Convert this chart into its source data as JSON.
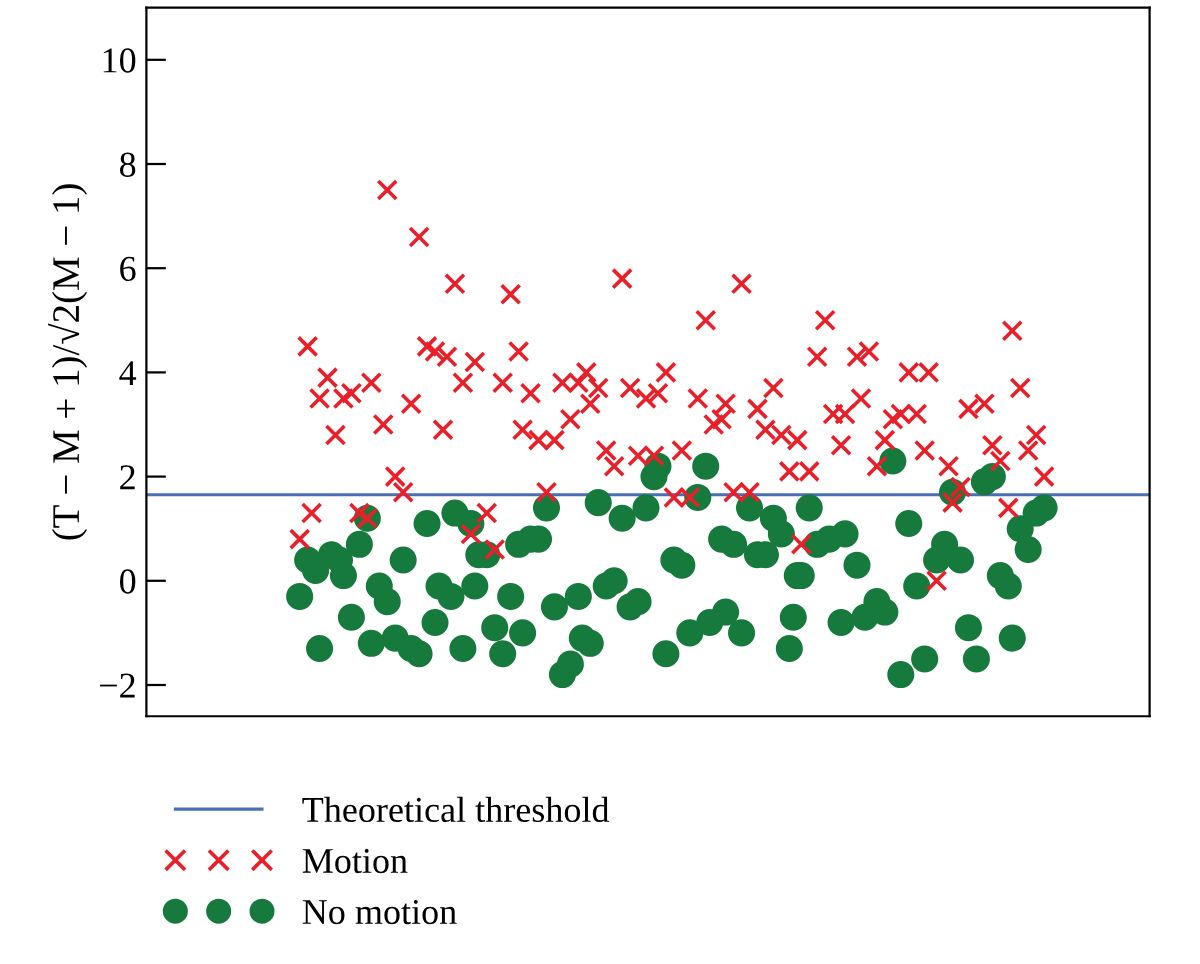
{
  "chart_data": {
    "type": "scatter",
    "ylabel": "(T − M + 1)/√2(M − 1)",
    "categories": [
      null,
      null,
      null,
      null,
      null,
      null,
      null,
      null,
      null,
      null,
      null,
      null,
      null,
      null,
      null,
      null,
      null,
      null,
      null,
      null,
      null,
      null,
      null,
      null,
      null,
      null,
      null,
      null,
      null,
      null,
      null,
      null,
      null,
      null,
      null,
      null,
      null,
      null,
      null,
      null,
      null,
      null,
      null,
      null,
      null,
      null,
      null,
      null,
      null,
      null,
      null,
      null,
      null,
      null,
      null,
      null,
      null,
      null,
      null,
      null,
      null,
      null,
      null,
      null,
      null,
      null,
      null,
      null,
      null,
      null,
      null,
      null,
      null,
      null,
      null,
      null,
      null,
      null,
      null,
      null,
      null,
      null,
      null,
      null,
      null,
      null,
      null,
      null,
      null,
      null,
      null,
      null,
      null,
      null,
      null,
      null,
      null,
      null,
      null,
      null,
      null,
      null,
      null,
      null,
      null,
      null,
      null,
      null,
      null,
      null,
      null,
      null,
      null,
      null,
      null,
      null,
      null,
      null,
      null,
      null,
      null,
      null,
      null,
      null,
      null,
      null,
      null,
      null,
      null,
      null,
      null,
      null,
      null,
      null,
      null,
      null,
      null,
      null,
      null,
      null,
      null,
      null,
      null,
      null,
      null,
      null,
      null,
      null,
      null,
      null,
      null,
      null,
      null,
      null,
      null,
      null,
      null,
      null,
      null,
      null,
      null,
      null,
      null,
      null,
      null,
      null,
      null,
      null,
      null,
      null,
      null,
      null,
      null,
      null,
      null,
      null,
      null,
      null,
      null,
      null,
      null,
      null,
      null,
      null,
      null,
      null,
      null,
      null,
      null,
      null,
      null,
      null,
      null,
      null,
      null,
      null,
      null,
      null,
      null,
      null,
      null,
      null,
      null,
      null,
      null,
      null,
      null,
      null,
      null,
      null,
      null,
      null,
      null,
      null,
      null,
      null,
      null,
      null,
      null,
      null,
      null,
      null,
      null,
      null,
      null,
      null,
      null,
      null,
      null,
      null,
      null,
      null,
      null,
      null,
      null,
      null,
      null,
      null,
      null,
      null,
      null,
      null,
      null,
      null,
      null,
      null,
      null,
      null,
      null,
      null,
      null,
      null
    ],
    "series": [
      {
        "name": "Motion",
        "color": "#e8202a",
        "marker": "cross",
        "values": [
          null,
          null,
          null,
          null,
          null,
          null,
          null,
          null,
          null,
          null,
          null,
          null,
          null,
          null,
          null,
          null,
          null,
          null,
          null,
          null,
          null,
          null,
          null,
          null,
          null,
          null,
          null,
          null,
          null,
          null,
          null,
          null,
          null,
          null,
          null,
          null,
          null,
          null,
          0.8,
          null,
          4.5,
          1.3,
          null,
          3.5,
          null,
          3.9,
          null,
          2.8,
          null,
          3.5,
          null,
          3.6,
          null,
          1.3,
          null,
          1.2,
          3.8,
          null,
          null,
          3.0,
          7.5,
          null,
          2.0,
          null,
          1.7,
          null,
          3.4,
          null,
          6.6,
          null,
          4.5,
          null,
          4.4,
          null,
          2.9,
          4.3,
          null,
          5.7,
          null,
          3.8,
          null,
          0.9,
          4.2,
          null,
          null,
          1.3,
          null,
          0.6,
          null,
          3.8,
          null,
          5.5,
          null,
          4.4,
          2.9,
          null,
          3.6,
          null,
          2.7,
          null,
          1.7,
          null,
          2.7,
          null,
          3.8,
          null,
          3.1,
          null,
          3.8,
          null,
          4.0,
          3.4,
          null,
          3.7,
          null,
          2.5,
          null,
          2.2,
          null,
          5.8,
          null,
          3.7,
          null,
          2.4,
          null,
          3.5,
          null,
          2.4,
          3.6,
          null,
          4.0,
          null,
          1.6,
          null,
          2.5,
          null,
          1.6,
          null,
          3.5,
          null,
          5.0,
          null,
          3.0,
          null,
          3.1,
          3.4,
          null,
          1.7,
          null,
          5.7,
          null,
          1.7,
          null,
          3.3,
          null,
          2.9,
          null,
          3.7,
          null,
          2.8,
          null,
          2.1,
          null,
          2.7,
          0.7,
          null,
          2.1,
          null,
          4.3,
          null,
          5.0,
          null,
          3.2,
          null,
          2.6,
          3.2,
          null,
          null,
          4.3,
          3.5,
          null,
          4.4,
          null,
          2.2,
          null,
          2.7,
          null,
          3.1,
          null,
          3.2,
          null,
          4.0,
          null,
          3.2,
          null,
          2.5,
          4.0,
          null,
          0.0,
          null,
          null,
          2.2,
          1.5,
          null,
          1.8,
          null,
          3.3,
          null,
          null,
          null,
          3.4,
          null,
          2.6,
          null,
          2.3,
          null,
          1.4,
          4.8,
          null,
          3.7,
          null,
          2.5,
          null,
          2.8,
          null,
          2.0,
          null,
          null,
          null,
          null,
          null,
          null,
          null,
          null,
          null,
          null,
          null,
          null,
          null,
          null,
          null,
          null,
          null,
          null,
          null,
          null,
          null,
          null,
          null,
          null,
          null,
          null
        ]
      },
      {
        "name": "No motion",
        "color": "#157a3c",
        "marker": "circle",
        "values": [
          null,
          null,
          null,
          null,
          null,
          null,
          null,
          null,
          null,
          null,
          null,
          null,
          null,
          null,
          null,
          null,
          null,
          null,
          null,
          null,
          null,
          null,
          null,
          null,
          null,
          null,
          null,
          null,
          null,
          null,
          null,
          null,
          null,
          null,
          null,
          null,
          null,
          null,
          -0.3,
          null,
          0.4,
          null,
          0.2,
          -1.3,
          null,
          null,
          0.5,
          null,
          0.4,
          0.1,
          null,
          -0.7,
          null,
          0.7,
          null,
          1.2,
          -1.2,
          null,
          -0.1,
          null,
          -0.4,
          null,
          -1.1,
          null,
          0.4,
          null,
          -1.3,
          null,
          -1.4,
          null,
          1.1,
          null,
          -0.8,
          -0.1,
          null,
          null,
          -0.3,
          1.3,
          null,
          -1.3,
          null,
          1.1,
          -0.1,
          0.5,
          null,
          0.5,
          null,
          -0.9,
          null,
          -1.4,
          null,
          -0.3,
          null,
          0.7,
          -1.0,
          null,
          0.8,
          null,
          0.8,
          null,
          1.4,
          null,
          -0.5,
          null,
          -1.8,
          null,
          -1.6,
          null,
          -0.3,
          -1.1,
          null,
          -1.2,
          null,
          1.5,
          null,
          -0.1,
          null,
          0.0,
          null,
          1.2,
          null,
          -0.5,
          null,
          -0.4,
          null,
          1.4,
          null,
          2.0,
          2.2,
          null,
          -1.4,
          null,
          0.4,
          null,
          0.3,
          null,
          -1.0,
          null,
          1.6,
          null,
          2.2,
          -0.8,
          null,
          null,
          0.8,
          -0.6,
          null,
          0.7,
          null,
          -1.0,
          null,
          1.4,
          null,
          0.5,
          null,
          0.5,
          null,
          1.2,
          null,
          0.9,
          null,
          -1.3,
          -0.7,
          0.1,
          0.1,
          null,
          1.4,
          null,
          0.7,
          null,
          null,
          0.8,
          null,
          null,
          -0.8,
          0.9,
          null,
          null,
          0.3,
          null,
          -0.7,
          null,
          null,
          -0.4,
          null,
          -0.6,
          null,
          2.3,
          null,
          -1.8,
          null,
          1.1,
          null,
          -0.1,
          null,
          -1.5,
          null,
          null,
          0.4,
          null,
          0.7,
          null,
          1.7,
          null,
          0.4,
          null,
          -0.9,
          null,
          -1.5,
          null,
          1.9,
          null,
          2.0,
          null,
          0.1,
          null,
          -0.1,
          -1.1,
          null,
          1.0,
          null,
          0.6,
          null,
          1.3,
          null,
          1.4,
          null,
          null,
          null,
          null,
          null,
          null,
          null,
          null,
          null,
          null,
          null,
          null,
          null,
          null,
          null,
          null,
          null,
          null,
          null,
          null,
          null,
          null,
          null,
          null,
          null,
          null
        ]
      }
    ],
    "ref_lines": [
      {
        "axis": "y",
        "value": 1.65,
        "label": "Theoretical threshold",
        "color": "#4a6fb5",
        "line_style": "solid"
      }
    ],
    "ylim": [
      -2.6,
      11
    ],
    "yticks": [
      -2,
      0,
      2,
      4,
      6,
      8,
      10
    ],
    "grid": false,
    "legend": "bottom left",
    "tick_labels": "y"
  }
}
